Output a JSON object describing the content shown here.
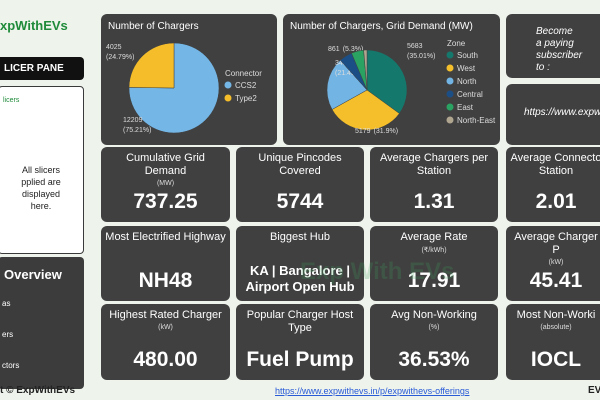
{
  "sidebar": {
    "brand": "xpWithEVs",
    "pane": "LICER PANE",
    "slicers_heading": "licers",
    "slicers_note": [
      "All slicers",
      "pplied are",
      "displayed",
      "here."
    ],
    "overview": "Overview",
    "items": [
      "as",
      "ers",
      "ctors"
    ]
  },
  "footer": {
    "credit": "t © ExpWithEVs",
    "link": "https://www.expwithevs.in/p/expwithevs-offerings",
    "right": "EV"
  },
  "watermark": "Exp With EVs",
  "promo": {
    "text": "Become a paying subscriber to :",
    "link": "https://www.expwith"
  },
  "chart_data": [
    {
      "type": "pie",
      "title": "Number of Chargers",
      "legend_title": "Connector",
      "categories": [
        "CCS2",
        "Type2"
      ],
      "values": [
        12209,
        4025
      ],
      "percent": [
        75.21,
        24.79
      ],
      "percent_labels": [
        "(75.21%)",
        "(24.79%)"
      ],
      "colors": [
        "#74b6e6",
        "#f5bd2a"
      ]
    },
    {
      "type": "pie",
      "title": "Number of Chargers, Grid Demand (MW)",
      "legend_title": "Zone",
      "categories": [
        "South",
        "West",
        "North",
        "Central",
        "East",
        "North-East"
      ],
      "values": [
        5683,
        5179,
        3483,
        861,
        812,
        216
      ],
      "percent": [
        35.01,
        31.9,
        21.45,
        5.3,
        5.0,
        1.33
      ],
      "percent_labels": [
        "(35.01%)",
        "(31.9%)",
        "(21.45%)",
        "(5.3%)",
        null,
        null
      ],
      "colors": [
        "#15786c",
        "#f5bf2c",
        "#72b4e4",
        "#1c4e86",
        "#2aa262",
        "#b0a58f"
      ]
    }
  ],
  "cards": [
    {
      "title": "Cumulative Grid Demand",
      "unit": "(MW)",
      "value": "737.25"
    },
    {
      "title": "Unique Pincodes Covered",
      "value": "5744"
    },
    {
      "title": "Average Chargers per Station",
      "value": "1.31"
    },
    {
      "title": "Average Connecto Station",
      "value": "2.01"
    },
    {
      "title": "Most Electrified Highway",
      "value": "NH48"
    },
    {
      "title": "Biggest Hub",
      "value": "KA | Bangalore | Airport Open Hub"
    },
    {
      "title": "Average Rate",
      "unit": "(₹/kWh)",
      "value": "17.91"
    },
    {
      "title": "Average Charger P",
      "unit": "(kW)",
      "value": "45.41"
    },
    {
      "title": "Highest Rated Charger",
      "unit": "(kW)",
      "value": "480.00"
    },
    {
      "title": "Popular Charger Host Type",
      "value": "Fuel Pump"
    },
    {
      "title": "Avg Non-Working",
      "unit": "(%)",
      "value": "36.53%"
    },
    {
      "title": "Most Non-Worki",
      "unit": "(absolute)",
      "value": "IOCL"
    }
  ]
}
